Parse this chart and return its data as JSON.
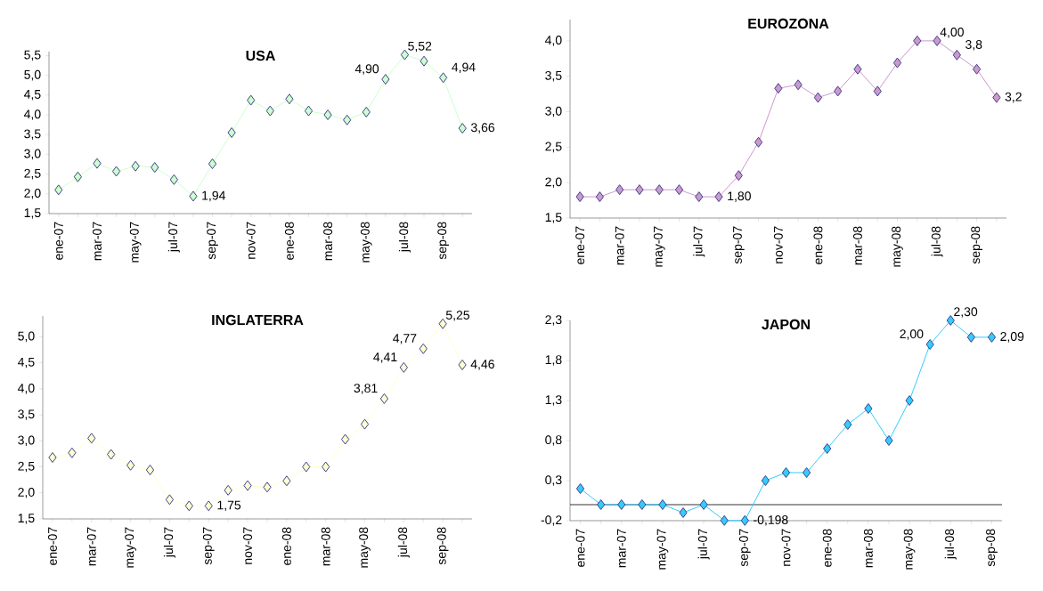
{
  "chart_data": [
    {
      "type": "line",
      "title": "USA",
      "marker": "diamond",
      "categories": [
        "ene-07",
        null,
        "mar-07",
        null,
        "may-07",
        null,
        "jul-07",
        null,
        "sep-07",
        null,
        "nov-07",
        null,
        "ene-08",
        null,
        "mar-08",
        null,
        "may-08",
        null,
        "jul-08",
        null,
        "sep-08",
        null
      ],
      "series": [
        {
          "color": "#ccffcc",
          "values": [
            2.1,
            2.43,
            2.77,
            2.57,
            2.7,
            2.67,
            2.36,
            1.94,
            2.76,
            3.55,
            4.37,
            4.1,
            4.4,
            4.1,
            4.0,
            3.87,
            4.07,
            4.9,
            5.52,
            5.36,
            4.94,
            3.66
          ],
          "value_labels": [
            null,
            null,
            null,
            null,
            null,
            null,
            null,
            "1,94",
            null,
            null,
            null,
            null,
            null,
            null,
            null,
            null,
            null,
            "4,90",
            "5,52",
            null,
            "4,94",
            "3,66"
          ]
        }
      ],
      "ylim": [
        1.5,
        5.6
      ],
      "yticks": [
        {
          "value": 1.5,
          "label": "1,5"
        },
        {
          "value": 2.0,
          "label": "2,0"
        },
        {
          "value": 2.5,
          "label": "2,5"
        },
        {
          "value": 3.0,
          "label": "3,0"
        },
        {
          "value": 3.5,
          "label": "3,5"
        },
        {
          "value": 4.0,
          "label": "4,0"
        },
        {
          "value": 4.5,
          "label": "4,5"
        },
        {
          "value": 5.0,
          "label": "5,0"
        },
        {
          "value": 5.5,
          "label": "5,5"
        }
      ]
    },
    {
      "type": "line",
      "title": "EUROZONA",
      "marker": "diamond",
      "categories": [
        "ene-07",
        null,
        "mar-07",
        null,
        "may-07",
        null,
        "jul-07",
        null,
        "sep-07",
        null,
        "nov-07",
        null,
        "ene-08",
        null,
        "mar-08",
        null,
        "may-08",
        null,
        "jul-08",
        null,
        "sep-08",
        null
      ],
      "series": [
        {
          "color": "#cc99cc",
          "values": [
            1.8,
            1.8,
            1.9,
            1.9,
            1.9,
            1.9,
            1.8,
            1.8,
            2.1,
            2.57,
            3.33,
            3.38,
            3.2,
            3.29,
            3.6,
            3.29,
            3.69,
            4.0,
            4.0,
            3.8,
            3.6,
            3.2
          ],
          "value_labels": [
            null,
            null,
            null,
            null,
            null,
            null,
            null,
            "1,80",
            null,
            null,
            null,
            null,
            null,
            null,
            null,
            null,
            null,
            null,
            "4,00",
            "3,8",
            null,
            "3,2"
          ]
        }
      ],
      "ylim": [
        1.5,
        4.3
      ],
      "yticks": [
        {
          "value": 1.5,
          "label": "1,5"
        },
        {
          "value": 2.0,
          "label": "2,0"
        },
        {
          "value": 2.5,
          "label": "2,5"
        },
        {
          "value": 3.0,
          "label": "3,0"
        },
        {
          "value": 3.5,
          "label": "3,5"
        },
        {
          "value": 4.0,
          "label": "4,0"
        }
      ]
    },
    {
      "type": "line",
      "title": "INGLATERRA",
      "marker": "diamond",
      "categories": [
        "ene-07",
        null,
        "mar-07",
        null,
        "may-07",
        null,
        "jul-07",
        null,
        "sep-07",
        null,
        "nov-07",
        null,
        "ene-08",
        null,
        "mar-08",
        null,
        "may-08",
        null,
        "jul-08",
        null,
        "sep-08",
        null
      ],
      "series": [
        {
          "color": "#ffffcc",
          "values": [
            2.68,
            2.77,
            3.05,
            2.74,
            2.53,
            2.44,
            1.87,
            1.75,
            1.75,
            2.05,
            2.14,
            2.11,
            2.23,
            2.5,
            2.5,
            3.03,
            3.32,
            3.81,
            4.41,
            4.77,
            5.25,
            4.46
          ],
          "value_labels": [
            null,
            null,
            null,
            null,
            null,
            null,
            null,
            null,
            "1,75",
            null,
            null,
            null,
            null,
            null,
            null,
            null,
            null,
            "3,81",
            "4,41",
            "4,77",
            "5,25",
            "4,46"
          ]
        }
      ],
      "ylim": [
        1.5,
        5.4
      ],
      "yticks": [
        {
          "value": 1.5,
          "label": "1,5"
        },
        {
          "value": 2.0,
          "label": "2,0"
        },
        {
          "value": 2.5,
          "label": "2,5"
        },
        {
          "value": 3.0,
          "label": "3,0"
        },
        {
          "value": 3.5,
          "label": "3,5"
        },
        {
          "value": 4.0,
          "label": "4,0"
        },
        {
          "value": 4.5,
          "label": "4,5"
        },
        {
          "value": 5.0,
          "label": "5,0"
        }
      ]
    },
    {
      "type": "line",
      "title": "JAPON",
      "marker": "diamond",
      "categories": [
        "ene-07",
        null,
        "mar-07",
        null,
        "may-07",
        null,
        "jul-07",
        null,
        "sep-07",
        null,
        "nov-07",
        null,
        "ene-08",
        null,
        "mar-08",
        null,
        "may-08",
        null,
        "jul-08",
        null,
        "sep-08"
      ],
      "series": [
        {
          "color": "#33ccff",
          "values": [
            0.2,
            0.0,
            0.0,
            0.0,
            0.0,
            -0.1,
            0.0,
            -0.198,
            -0.198,
            0.3,
            0.4,
            0.4,
            0.7,
            1.0,
            1.2,
            0.8,
            1.3,
            2.0,
            2.3,
            2.09,
            2.09
          ],
          "value_labels": [
            null,
            null,
            null,
            null,
            null,
            null,
            null,
            null,
            "-0,198",
            null,
            null,
            null,
            null,
            null,
            null,
            null,
            null,
            "2,00",
            "2,30",
            null,
            "2,09"
          ]
        }
      ],
      "ylim": [
        -0.2,
        2.3
      ],
      "yticks": [
        {
          "value": -0.2,
          "label": "-0,2"
        },
        {
          "value": 0.3,
          "label": "0,3"
        },
        {
          "value": 0.8,
          "label": "0,8"
        },
        {
          "value": 1.3,
          "label": "1,3"
        },
        {
          "value": 1.8,
          "label": "1,8"
        },
        {
          "value": 2.3,
          "label": "2,3"
        }
      ],
      "ref_lines": [
        {
          "axis": "y",
          "value": 0,
          "color": "#000000"
        }
      ]
    }
  ]
}
